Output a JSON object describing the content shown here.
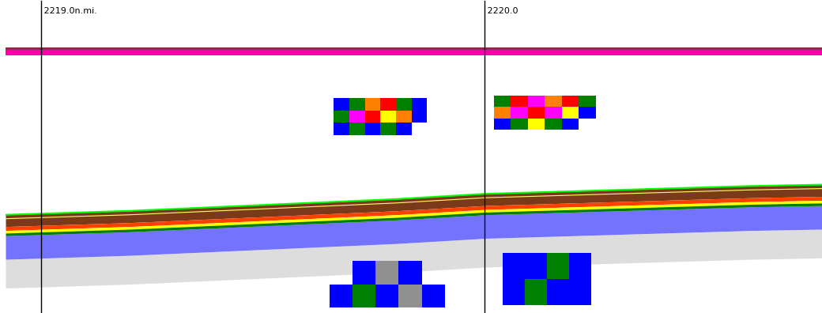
{
  "chart_data": {
    "type": "echogram",
    "xlim": [
      2218.92,
      2220.76
    ],
    "ylim": [
      100,
      -2
    ],
    "tick_labels": false,
    "grid": false,
    "intervals": [
      {
        "value": 2219.0,
        "label": "2219.0n.mi."
      },
      {
        "value": 2220.0,
        "label": "2220.0"
      }
    ],
    "palette": [
      "#ffffff",
      "#909090",
      "#0000ff",
      "#008000",
      "#ffff00",
      "#ff8000",
      "#ff0000",
      "#ff00ff",
      "#7a3a1a"
    ],
    "surface": [
      {
        "top": -1.5,
        "bottom": -0.6,
        "color": "#8b2a4a"
      },
      {
        "top": -0.6,
        "bottom": 1.5,
        "color": "#ff00aa"
      }
    ],
    "bottom_line": {
      "x": [
        2218.92,
        2219.2,
        2219.4,
        2219.6,
        2219.8,
        2220.0,
        2220.2,
        2220.4,
        2220.6,
        2220.76
      ],
      "depth": [
        62.5,
        61,
        59.5,
        58,
        56.5,
        54.5,
        53.5,
        52.5,
        51.5,
        51
      ],
      "color": "#00ff00"
    },
    "below_bottom_layers": [
      {
        "top": 0,
        "bottom": 4.5,
        "color": "#7a3a1a"
      },
      {
        "top": 4.5,
        "bottom": 6,
        "color": "#ff4000"
      },
      {
        "top": 6,
        "bottom": 7,
        "color": "#ffff00"
      },
      {
        "top": 7,
        "bottom": 8,
        "color": "#008000"
      },
      {
        "top": 8,
        "bottom": 17,
        "color": "#0000ff"
      },
      {
        "top": 17,
        "bottom": 28,
        "color": "#909090"
      }
    ],
    "inner_line": {
      "offset": 1.5,
      "color": "#ffff66"
    },
    "schools": [
      {
        "x": [
          2219.66,
          2219.87
        ],
        "depth": [
          18,
          32
        ],
        "cells": [
          [
            2,
            3,
            5,
            6,
            3,
            2
          ],
          [
            3,
            7,
            6,
            4,
            5,
            2
          ],
          [
            2,
            3,
            2,
            3,
            2,
            0
          ]
        ]
      },
      {
        "x": [
          2220.02,
          2220.25
        ],
        "depth": [
          17,
          30
        ],
        "cells": [
          [
            3,
            6,
            7,
            5,
            6,
            3
          ],
          [
            5,
            7,
            6,
            7,
            4,
            2
          ],
          [
            2,
            3,
            4,
            3,
            2,
            0
          ]
        ]
      },
      {
        "x": [
          2219.65,
          2219.91
        ],
        "depth": [
          80,
          98
        ],
        "cells": [
          [
            0,
            2,
            1,
            2,
            0
          ],
          [
            2,
            3,
            2,
            1,
            2
          ]
        ]
      },
      {
        "x": [
          2220.04,
          2220.24
        ],
        "depth": [
          77,
          97
        ],
        "cells": [
          [
            2,
            2,
            3,
            2
          ],
          [
            2,
            3,
            2,
            2
          ]
        ]
      }
    ]
  }
}
